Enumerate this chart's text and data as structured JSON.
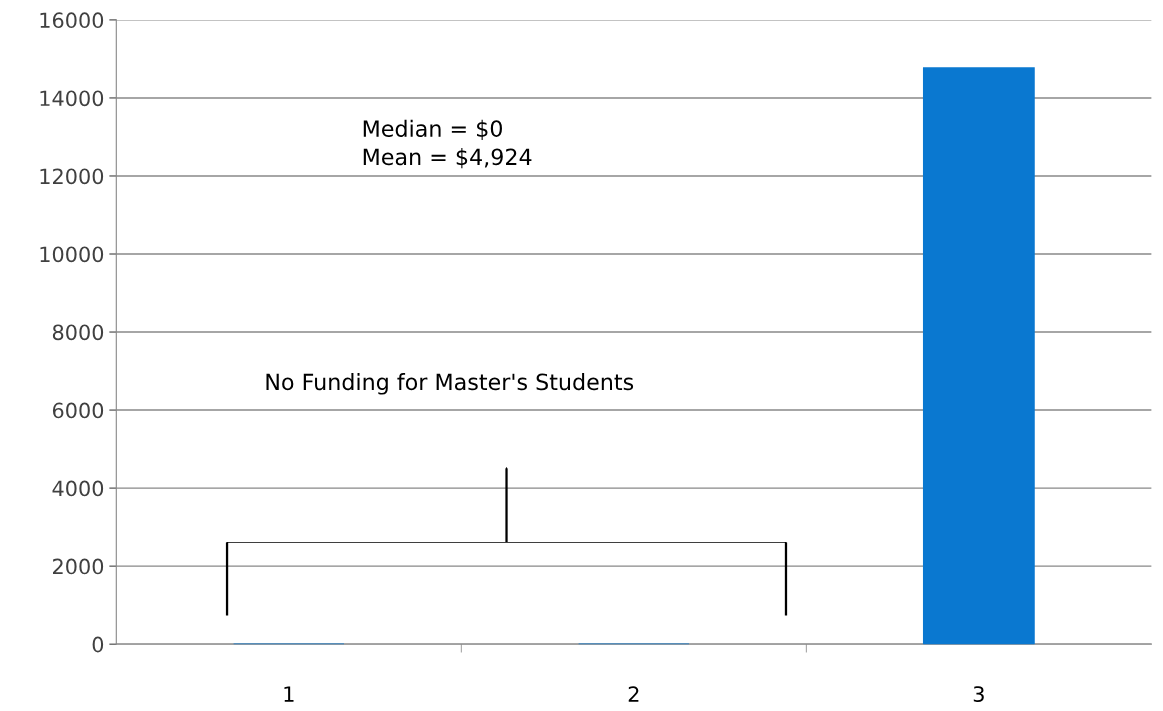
{
  "chart_data": {
    "type": "bar",
    "categories": [
      "1",
      "2",
      "3"
    ],
    "values": [
      0,
      0,
      14770
    ],
    "color": "#0a78d0",
    "ylim": [
      0,
      16000
    ],
    "yticks": [
      0,
      2000,
      4000,
      6000,
      8000,
      10000,
      12000,
      14000,
      16000
    ],
    "grid": "y",
    "legend": false,
    "annotations": [
      "Median = $0\nMean = $4,924",
      "No Funding for Master's Students"
    ]
  }
}
